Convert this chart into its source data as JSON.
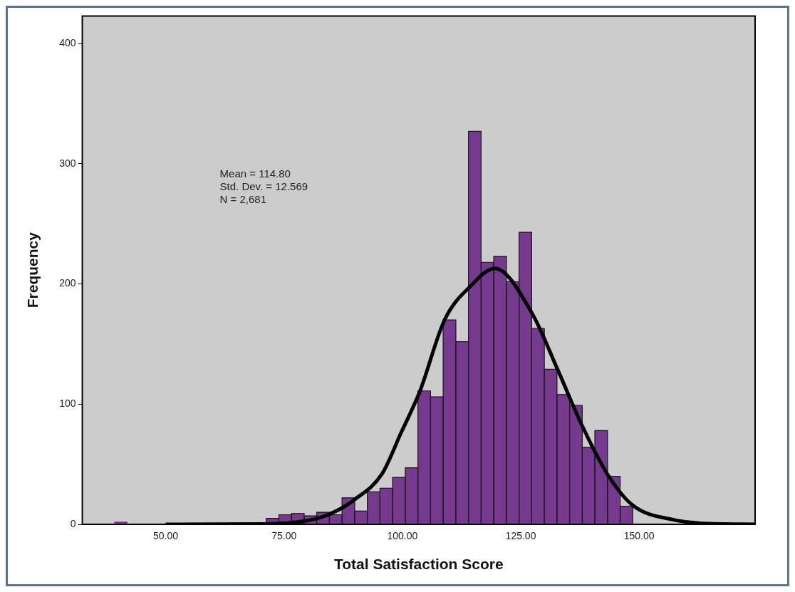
{
  "chart_data": {
    "type": "histogram",
    "xlabel": "Total Satisfaction Score",
    "ylabel": "Frequency",
    "annotations": [
      "Mean = 114.80",
      "Std. Dev. = 12.569",
      "N = 2,681"
    ],
    "bins": [
      39.2,
      41.87,
      44.54,
      47.21,
      49.88,
      52.55,
      55.22,
      57.89,
      60.56,
      63.23,
      65.9,
      68.57,
      71.24,
      73.91,
      76.58,
      79.25,
      81.92,
      84.59,
      87.26,
      89.93,
      92.6,
      95.27,
      97.94,
      100.61,
      103.28,
      105.95,
      108.62,
      111.29,
      113.96,
      116.63,
      119.3,
      121.97,
      124.64,
      127.31,
      129.98,
      132.65,
      135.32,
      137.99,
      140.66,
      143.33,
      146.0,
      148.67
    ],
    "values": [
      2,
      0,
      0,
      0,
      0,
      0,
      null,
      0,
      null,
      null,
      null,
      0,
      5,
      8,
      9,
      7,
      10,
      8,
      22,
      11,
      27,
      30,
      39,
      47,
      111,
      106,
      170,
      152,
      327,
      218,
      223,
      202,
      243,
      163,
      129,
      108,
      99,
      64,
      78,
      40,
      15
    ],
    "color": "#753a8e",
    "series": [
      {
        "type": "line",
        "color": "#000000",
        "x": [
          50,
          71.3,
          75.4,
          79,
          83,
          86.5,
          89.7,
          95.7,
          99.7,
          103.7,
          108.9,
          114.6,
          119.5,
          127.4,
          132.7,
          138,
          143.3,
          148.6,
          157.3,
          164.9,
          174.5
        ],
        "values": [
          0,
          0.3,
          1,
          2.5,
          6,
          12,
          20,
          42,
          76,
          110.7,
          170,
          199,
          213,
          175.5,
          129.6,
          81.8,
          41.8,
          16,
          3.8,
          0.6,
          0
        ]
      }
    ],
    "xlim": [
      32.4,
      174.5
    ],
    "ylim": [
      0,
      423
    ],
    "xticks": [
      {
        "value": 50,
        "label": "50.00"
      },
      {
        "value": 75,
        "label": "75.00"
      },
      {
        "value": 100,
        "label": "100.00"
      },
      {
        "value": 125,
        "label": "125.00"
      },
      {
        "value": 150,
        "label": "150.00"
      }
    ],
    "yticks": [
      0,
      100,
      200,
      300,
      400
    ],
    "grid": false,
    "legend": false
  }
}
